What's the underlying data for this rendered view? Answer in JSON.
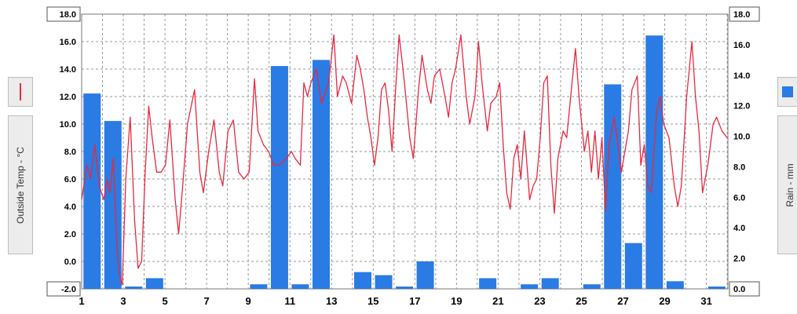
{
  "chart_data": {
    "type": "bar+line",
    "x_ticks": [
      "1",
      "3",
      "5",
      "7",
      "9",
      "11",
      "13",
      "15",
      "17",
      "19",
      "21",
      "23",
      "25",
      "27",
      "29",
      "31"
    ],
    "left_axis": {
      "label": "Outside Temp - °C",
      "ylim": [
        -2,
        18
      ],
      "ticks": [
        "-2.0",
        "0.0",
        "2.0",
        "4.0",
        "6.0",
        "8.0",
        "10.0",
        "12.0",
        "14.0",
        "16.0",
        "18.0"
      ]
    },
    "right_axis": {
      "label": "Rain - mm",
      "ylim": [
        0,
        18
      ],
      "ticks": [
        "0.0",
        "2.0",
        "4.0",
        "6.0",
        "8.0",
        "10.0",
        "12.0",
        "14.0",
        "16.0",
        "18.0"
      ]
    },
    "grid": true,
    "colors": {
      "temp": "#e8283f",
      "rain": "#2a7be4",
      "grid": "#9a9a9a"
    },
    "series": [
      {
        "type": "bar",
        "axis": "right",
        "days": [
          1,
          2,
          3,
          4,
          5,
          6,
          7,
          8,
          9,
          10,
          11,
          12,
          13,
          14,
          15,
          16,
          17,
          18,
          19,
          20,
          21,
          22,
          23,
          24,
          25,
          26,
          27,
          28,
          29,
          30,
          31
        ],
        "values": [
          12.8,
          11.0,
          0.1,
          0.7,
          0.0,
          0.0,
          0.0,
          0.0,
          0.3,
          14.6,
          0.3,
          15.0,
          0.0,
          1.1,
          0.9,
          0.1,
          1.8,
          0.0,
          0.0,
          0.7,
          0.0,
          0.3,
          0.7,
          0.0,
          0.3,
          13.4,
          3.0,
          16.6,
          0.5,
          0.0,
          0.1
        ]
      },
      {
        "type": "line",
        "axis": "left",
        "points": [
          [
            1.0,
            4.5
          ],
          [
            1.3,
            7.0
          ],
          [
            1.5,
            6.0
          ],
          [
            1.75,
            8.5
          ],
          [
            2.0,
            5.5
          ],
          [
            2.25,
            4.5
          ],
          [
            2.45,
            6.0
          ],
          [
            2.6,
            5.0
          ],
          [
            2.8,
            7.5
          ],
          [
            3.0,
            1.0
          ],
          [
            3.15,
            -1.0
          ],
          [
            3.3,
            -1.7
          ],
          [
            3.5,
            6.0
          ],
          [
            3.75,
            10.5
          ],
          [
            4.0,
            3.0
          ],
          [
            4.2,
            -0.5
          ],
          [
            4.4,
            0.0
          ],
          [
            4.6,
            6.5
          ],
          [
            4.8,
            11.3
          ],
          [
            5.0,
            9.0
          ],
          [
            5.25,
            6.5
          ],
          [
            5.5,
            6.5
          ],
          [
            5.75,
            7.0
          ],
          [
            6.0,
            10.3
          ],
          [
            6.3,
            4.5
          ],
          [
            6.5,
            2.0
          ],
          [
            6.7,
            5.0
          ],
          [
            7.0,
            10.0
          ],
          [
            7.4,
            12.5
          ],
          [
            7.7,
            6.5
          ],
          [
            7.9,
            5.0
          ],
          [
            8.2,
            8.0
          ],
          [
            8.5,
            10.3
          ],
          [
            8.8,
            6.5
          ],
          [
            9.0,
            5.5
          ],
          [
            9.3,
            9.5
          ],
          [
            9.6,
            10.3
          ],
          [
            9.9,
            6.5
          ],
          [
            10.2,
            6.0
          ],
          [
            10.5,
            6.5
          ],
          [
            10.8,
            13.3
          ],
          [
            11.0,
            9.5
          ],
          [
            11.3,
            8.5
          ],
          [
            11.6,
            8.0
          ],
          [
            11.9,
            7.0
          ],
          [
            12.2,
            7.0
          ],
          [
            12.6,
            7.5
          ],
          [
            12.9,
            8.0
          ],
          [
            13.1,
            7.5
          ],
          [
            13.4,
            7.0
          ],
          [
            13.6,
            13.0
          ],
          [
            13.8,
            12.0
          ],
          [
            14.0,
            13.0
          ],
          [
            14.3,
            14.0
          ],
          [
            14.6,
            11.5
          ],
          [
            15.0,
            13.0
          ],
          [
            15.3,
            16.5
          ],
          [
            15.5,
            12.0
          ],
          [
            15.8,
            13.5
          ],
          [
            16.0,
            13.0
          ],
          [
            16.3,
            11.5
          ],
          [
            16.6,
            15.0
          ],
          [
            16.8,
            14.0
          ],
          [
            17.0,
            12.5
          ],
          [
            17.2,
            10.5
          ],
          [
            17.4,
            9.0
          ],
          [
            17.6,
            7.0
          ],
          [
            17.8,
            9.0
          ],
          [
            18.0,
            12.5
          ],
          [
            18.2,
            13.0
          ],
          [
            18.4,
            11.0
          ],
          [
            18.6,
            8.0
          ],
          [
            18.8,
            12.5
          ],
          [
            19.0,
            16.5
          ],
          [
            19.3,
            13.0
          ],
          [
            19.6,
            9.0
          ],
          [
            19.8,
            7.5
          ],
          [
            20.1,
            12.5
          ],
          [
            20.3,
            15.0
          ],
          [
            20.6,
            12.5
          ],
          [
            20.8,
            11.5
          ],
          [
            21.0,
            13.5
          ],
          [
            21.3,
            14.0
          ],
          [
            21.6,
            12.0
          ],
          [
            21.8,
            10.5
          ],
          [
            22.0,
            13.0
          ],
          [
            22.2,
            14.0
          ],
          [
            22.5,
            16.5
          ],
          [
            22.8,
            12.0
          ],
          [
            23.0,
            10.0
          ],
          [
            23.3,
            12.0
          ],
          [
            23.5,
            16.0
          ],
          [
            23.7,
            13.0
          ],
          [
            24.0,
            9.5
          ],
          [
            24.2,
            11.5
          ],
          [
            24.5,
            12.0
          ],
          [
            24.7,
            13.0
          ],
          [
            24.9,
            8.5
          ],
          [
            25.1,
            5.0
          ],
          [
            25.3,
            3.8
          ],
          [
            25.5,
            7.5
          ],
          [
            25.7,
            8.5
          ],
          [
            25.9,
            6.0
          ],
          [
            26.1,
            9.5
          ],
          [
            26.4,
            4.5
          ],
          [
            26.6,
            5.5
          ],
          [
            26.8,
            6.0
          ],
          [
            27.0,
            9.0
          ],
          [
            27.2,
            13.0
          ],
          [
            27.4,
            13.5
          ],
          [
            27.6,
            7.0
          ],
          [
            27.8,
            3.5
          ],
          [
            28.0,
            7.5
          ],
          [
            28.3,
            9.5
          ],
          [
            28.5,
            9.0
          ],
          [
            28.8,
            13.0
          ],
          [
            29.0,
            15.5
          ],
          [
            29.2,
            12.0
          ],
          [
            29.5,
            8.0
          ],
          [
            29.7,
            9.5
          ],
          [
            29.9,
            6.5
          ],
          [
            30.1,
            9.5
          ],
          [
            30.3,
            6.0
          ],
          [
            30.5,
            9.0
          ],
          [
            30.7,
            3.7
          ],
          [
            30.9,
            8.5
          ],
          [
            31.2,
            10.5
          ],
          [
            31.4,
            8.5
          ],
          [
            31.6,
            6.5
          ],
          [
            31.8,
            8.0
          ],
          [
            32.0,
            9.5
          ],
          [
            32.2,
            12.5
          ],
          [
            32.5,
            13.5
          ],
          [
            32.7,
            7.0
          ],
          [
            32.9,
            8.5
          ],
          [
            33.1,
            5.5
          ],
          [
            33.3,
            5.0
          ],
          [
            33.6,
            11.0
          ],
          [
            33.8,
            12.0
          ],
          [
            34.0,
            10.0
          ],
          [
            34.3,
            9.0
          ],
          [
            34.6,
            5.5
          ],
          [
            34.8,
            4.0
          ],
          [
            35.0,
            5.5
          ],
          [
            35.3,
            12.0
          ],
          [
            35.6,
            16.0
          ],
          [
            35.8,
            12.0
          ],
          [
            36.0,
            9.5
          ],
          [
            36.2,
            5.0
          ],
          [
            36.5,
            7.0
          ],
          [
            36.8,
            10.0
          ],
          [
            37.0,
            10.5
          ],
          [
            37.3,
            9.5
          ],
          [
            37.6,
            9.0
          ]
        ]
      }
    ]
  },
  "legend": {
    "temp_swatch": "red-line-swatch",
    "rain_swatch": "blue-bar-swatch"
  }
}
